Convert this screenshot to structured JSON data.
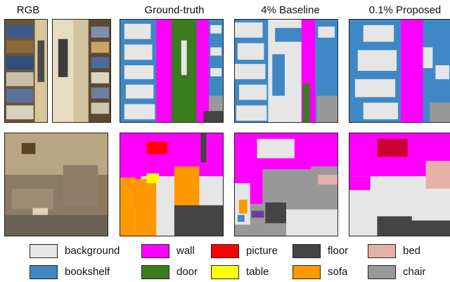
{
  "columns": [
    {
      "title": "RGB"
    },
    {
      "title": "Ground-truth"
    },
    {
      "title": "4% Baseline"
    },
    {
      "title": "0.1% Proposed"
    }
  ],
  "legend": [
    {
      "label": "background",
      "color": "#e6e6e6"
    },
    {
      "label": "wall",
      "color": "#ff00ff"
    },
    {
      "label": "picture",
      "color": "#ff0000"
    },
    {
      "label": "floor",
      "color": "#444444"
    },
    {
      "label": "bed",
      "color": "#e4b0a8"
    },
    {
      "label": "bookshelf",
      "color": "#3f88c5"
    },
    {
      "label": "door",
      "color": "#3a7d1e"
    },
    {
      "label": "table",
      "color": "#ffff00"
    },
    {
      "label": "sofa",
      "color": "#ff9900"
    },
    {
      "label": "chair",
      "color": "#999999"
    }
  ]
}
